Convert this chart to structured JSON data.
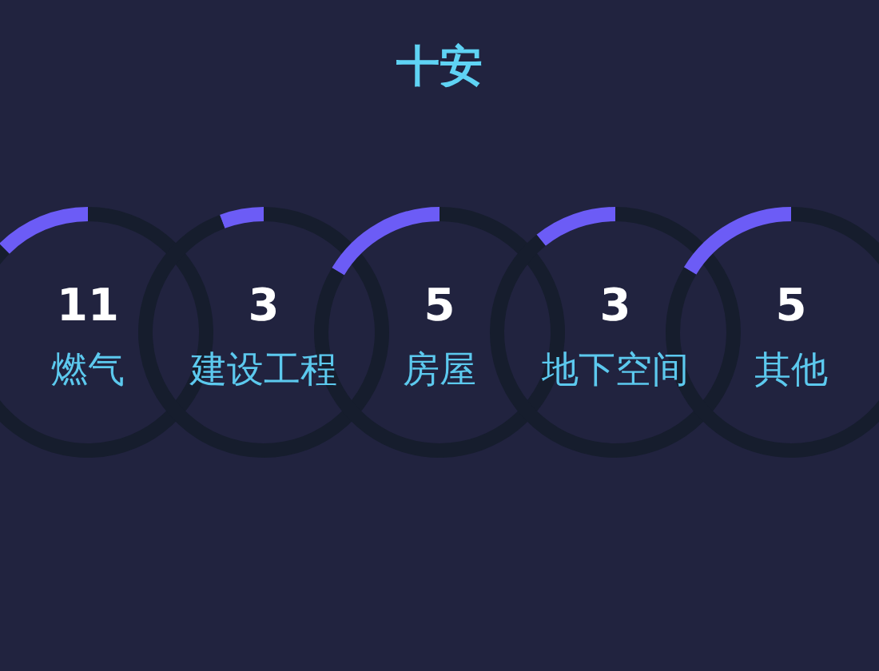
{
  "chart_data": [
    {
      "type": "other",
      "title": "十安"
    },
    {
      "type": "donut",
      "title": "燃气",
      "annotations": [
        "11"
      ],
      "categories": [
        null,
        null
      ],
      "values": [
        12.5,
        87.5
      ],
      "colors": [
        "#6c5cf6",
        "#161d2d"
      ]
    },
    {
      "type": "donut",
      "title": "建设工程",
      "annotations": [
        "3"
      ],
      "categories": [
        null,
        null
      ],
      "values": [
        5.7,
        94.3
      ],
      "colors": [
        "#6c5cf6",
        "#161d2d"
      ]
    },
    {
      "type": "donut",
      "title": "房屋",
      "annotations": [
        "5"
      ],
      "categories": [
        null,
        null
      ],
      "values": [
        16.4,
        83.6
      ],
      "colors": [
        "#6c5cf6",
        "#161d2d"
      ]
    },
    {
      "type": "donut",
      "title": "地下空间",
      "annotations": [
        "3"
      ],
      "categories": [
        null,
        null
      ],
      "values": [
        10.8,
        89.2
      ],
      "colors": [
        "#6c5cf6",
        "#161d2d"
      ]
    },
    {
      "type": "donut",
      "title": "其他",
      "annotations": [
        "5"
      ],
      "categories": [
        null,
        null
      ],
      "values": [
        16.3,
        83.7
      ],
      "colors": [
        "#6c5cf6",
        "#161d2d"
      ]
    }
  ]
}
